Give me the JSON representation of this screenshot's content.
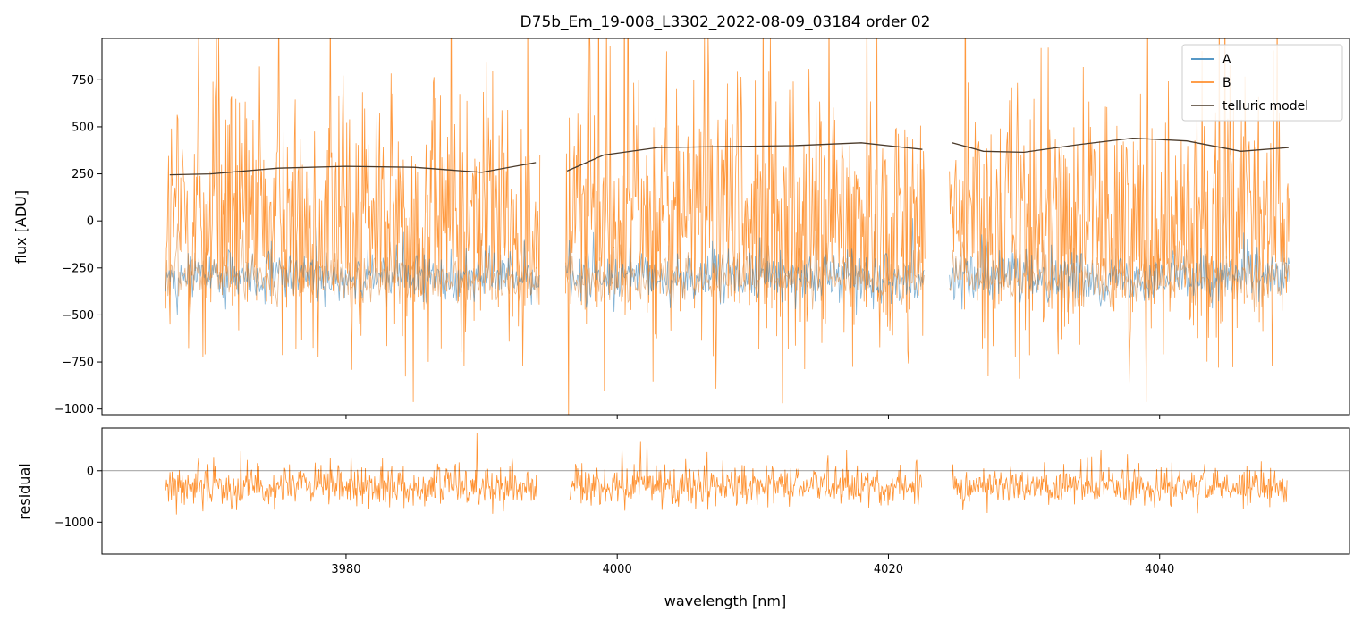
{
  "chart_data": [
    {
      "type": "line",
      "title": "D75b_Em_19-008_L3302_2022-08-09_03184  order 02",
      "xlabel": "",
      "ylabel": "flux [ADU]",
      "xlim": [
        3962,
        4054
      ],
      "ylim": [
        -1030,
        970
      ],
      "yticks": [
        -1000,
        -750,
        -500,
        -250,
        0,
        250,
        500,
        750
      ],
      "ytick_labels": [
        "−1000",
        "−750",
        "−500",
        "−250",
        "0",
        "250",
        "500",
        "750"
      ],
      "xticks": [
        3980,
        4000,
        4020,
        4040
      ],
      "segments": [
        [
          3966.7,
          3994.3
        ],
        [
          3996.2,
          4022.7
        ],
        [
          4024.5,
          4049.6
        ]
      ],
      "legend": {
        "position": "top-right",
        "entries": [
          "A",
          "B",
          "telluric model"
        ]
      },
      "colors": {
        "A": "#1f77b4",
        "B": "#ff7f0e",
        "telluric": "#4a3a2a"
      },
      "series": [
        {
          "name": "A",
          "description": "noisy spectrum",
          "mean": -300,
          "spread": 300
        },
        {
          "name": "B",
          "description": "noisy spectrum",
          "mean": 0,
          "spread": 900
        },
        {
          "name": "telluric model",
          "x": [
            3967,
            3970,
            3975,
            3980,
            3985,
            3990,
            3994,
            3996.3,
            3999,
            4003,
            4008,
            4013,
            4018,
            4022.5,
            4024.7,
            4027,
            4030,
            4034,
            4038,
            4042,
            4046,
            4049.5
          ],
          "y": [
            245,
            250,
            280,
            290,
            285,
            258,
            310,
            265,
            350,
            390,
            395,
            400,
            415,
            380,
            415,
            370,
            365,
            405,
            440,
            425,
            370,
            390
          ]
        }
      ]
    },
    {
      "type": "line",
      "xlabel": "wavelength [nm]",
      "ylabel": "residual",
      "xlim": [
        3962,
        4054
      ],
      "ylim": [
        -1620,
        830
      ],
      "yticks": [
        -1000,
        0
      ],
      "ytick_labels": [
        "−1000",
        "0"
      ],
      "xticks": [
        3980,
        4000,
        4020,
        4040
      ],
      "xtick_labels": [
        "3980",
        "4000",
        "4020",
        "4040"
      ],
      "reference_line": 0,
      "segments": [
        [
          3966.7,
          3994.1
        ],
        [
          3996.5,
          4022.5
        ],
        [
          4024.7,
          4049.4
        ]
      ],
      "series": [
        {
          "name": "B",
          "description": "residual",
          "mean": -300,
          "spread": 900
        }
      ]
    }
  ]
}
